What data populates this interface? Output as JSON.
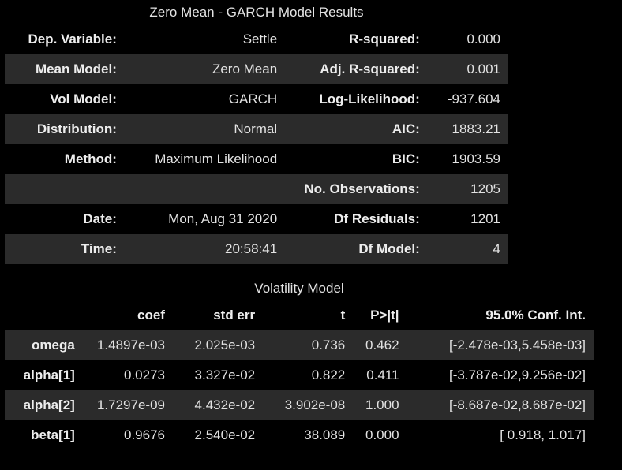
{
  "summary": {
    "title": "Zero Mean - GARCH Model Results",
    "rows": [
      [
        "Dep. Variable:",
        "Settle",
        "R-squared:",
        "0.000"
      ],
      [
        "Mean Model:",
        "Zero Mean",
        "Adj. R-squared:",
        "0.001"
      ],
      [
        "Vol Model:",
        "GARCH",
        "Log-Likelihood:",
        "-937.604"
      ],
      [
        "Distribution:",
        "Normal",
        "AIC:",
        "1883.21"
      ],
      [
        "Method:",
        "Maximum Likelihood",
        "BIC:",
        "1903.59"
      ],
      [
        "",
        "",
        "No. Observations:",
        "1205"
      ],
      [
        "Date:",
        "Mon, Aug 31 2020",
        "Df Residuals:",
        "1201"
      ],
      [
        "Time:",
        "20:58:41",
        "Df Model:",
        "4"
      ]
    ]
  },
  "volatility": {
    "title": "Volatility Model",
    "headers": [
      "",
      "coef",
      "std err",
      "t",
      "P>|t|",
      "95.0% Conf. Int."
    ],
    "rows": [
      [
        "omega",
        "1.4897e-03",
        "2.025e-03",
        "0.736",
        "0.462",
        "[-2.478e-03,5.458e-03]"
      ],
      [
        "alpha[1]",
        "0.0273",
        "3.327e-02",
        "0.822",
        "0.411",
        "[-3.787e-02,9.256e-02]"
      ],
      [
        "alpha[2]",
        "1.7297e-09",
        "4.432e-02",
        "3.902e-08",
        "1.000",
        "[-8.687e-02,8.687e-02]"
      ],
      [
        "beta[1]",
        "0.9676",
        "2.540e-02",
        "38.089",
        "0.000",
        "[ 0.918, 1.017]"
      ]
    ]
  }
}
